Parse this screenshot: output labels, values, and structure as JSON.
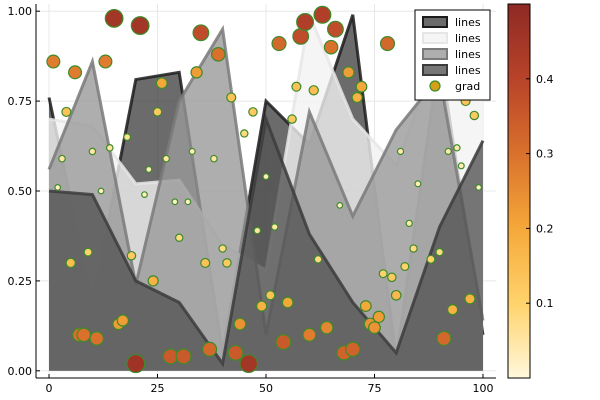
{
  "chart_data": {
    "type": "area",
    "title": "",
    "xlabel": "",
    "ylabel": "",
    "xlim": [
      -3,
      103
    ],
    "ylim": [
      -0.02,
      1.02
    ],
    "xticks": [
      0,
      25,
      50,
      75,
      100
    ],
    "xtick_labels": [
      "0",
      "25",
      "50",
      "75",
      "100"
    ],
    "yticks": [
      0,
      0.25,
      0.5,
      0.75,
      1.0
    ],
    "ytick_labels": [
      "0.00",
      "0.25",
      "0.50",
      "0.75",
      "1.00"
    ],
    "grid": true,
    "legend_position": "top-right",
    "series": [
      {
        "name": "lines",
        "kind": "filled-line",
        "fill_color": "#3a3a3a",
        "fill_opacity": 0.75,
        "line_color": "#1c1c1c",
        "x": [
          0,
          10,
          20,
          30,
          40,
          50,
          60,
          70,
          80,
          90,
          100
        ],
        "y": [
          0.76,
          0.19,
          0.81,
          0.83,
          0.05,
          0.75,
          0.63,
          0.99,
          0.03,
          0.88,
          0.1
        ]
      },
      {
        "name": "lines",
        "kind": "filled-line",
        "fill_color": "#f2f2f2",
        "fill_opacity": 0.8,
        "line_color": "#e6e6e6",
        "x": [
          0,
          10,
          20,
          30,
          40,
          50,
          60,
          70,
          80,
          90,
          100
        ],
        "y": [
          0.7,
          0.68,
          0.52,
          0.53,
          0.35,
          0.28,
          0.99,
          0.7,
          0.57,
          0.9,
          0.76
        ]
      },
      {
        "name": "lines",
        "kind": "filled-line",
        "fill_color": "#9a9a9a",
        "fill_opacity": 0.8,
        "line_color": "#7a7a7a",
        "x": [
          0,
          10,
          20,
          30,
          40,
          50,
          60,
          70,
          80,
          90,
          100
        ],
        "y": [
          0.56,
          0.86,
          0.24,
          0.75,
          0.95,
          0.1,
          0.72,
          0.43,
          0.67,
          0.82,
          0.14
        ]
      },
      {
        "name": "lines",
        "kind": "filled-line",
        "fill_color": "#555555",
        "fill_opacity": 0.8,
        "line_color": "#3c3c3c",
        "x": [
          0,
          10,
          20,
          30,
          40,
          50,
          60,
          70,
          80,
          90,
          100
        ],
        "y": [
          0.5,
          0.49,
          0.25,
          0.19,
          0.02,
          0.7,
          0.38,
          0.19,
          0.05,
          0.4,
          0.64
        ]
      },
      {
        "name": "grad",
        "kind": "scatter",
        "marker_color": "#d4a017",
        "marker_stroke": "#3f8a2a",
        "points": [
          [
            1,
            0.86,
            0.28
          ],
          [
            3,
            0.59,
            0.05
          ],
          [
            4,
            0.72,
            0.14
          ],
          [
            2,
            0.51,
            0.02
          ],
          [
            5,
            0.3,
            0.15
          ],
          [
            6,
            0.83,
            0.28
          ],
          [
            7,
            0.1,
            0.3
          ],
          [
            8,
            0.1,
            0.3
          ],
          [
            9,
            0.33,
            0.1
          ],
          [
            10,
            0.61,
            0.05
          ],
          [
            11,
            0.09,
            0.3
          ],
          [
            12,
            0.5,
            0.02
          ],
          [
            13,
            0.86,
            0.28
          ],
          [
            14,
            0.62,
            0.05
          ],
          [
            15,
            0.98,
            0.45
          ],
          [
            16,
            0.13,
            0.22
          ],
          [
            17,
            0.14,
            0.22
          ],
          [
            18,
            0.65,
            0.06
          ],
          [
            19,
            0.32,
            0.12
          ],
          [
            20,
            0.02,
            0.46
          ],
          [
            21,
            0.96,
            0.45
          ],
          [
            22,
            0.49,
            0.02
          ],
          [
            23,
            0.56,
            0.03
          ],
          [
            24,
            0.25,
            0.18
          ],
          [
            25,
            0.72,
            0.12
          ],
          [
            26,
            0.8,
            0.2
          ],
          [
            27,
            0.59,
            0.05
          ],
          [
            28,
            0.04,
            0.35
          ],
          [
            29,
            0.47,
            0.02
          ],
          [
            30,
            0.37,
            0.08
          ],
          [
            31,
            0.04,
            0.35
          ],
          [
            32,
            0.47,
            0.02
          ],
          [
            33,
            0.61,
            0.03
          ],
          [
            34,
            0.83,
            0.22
          ],
          [
            35,
            0.94,
            0.38
          ],
          [
            36,
            0.3,
            0.14
          ],
          [
            37,
            0.06,
            0.32
          ],
          [
            38,
            0.59,
            0.05
          ],
          [
            39,
            0.88,
            0.3
          ],
          [
            40,
            0.34,
            0.08
          ],
          [
            41,
            0.3,
            0.12
          ],
          [
            42,
            0.76,
            0.14
          ],
          [
            43,
            0.05,
            0.35
          ],
          [
            44,
            0.13,
            0.24
          ],
          [
            45,
            0.66,
            0.08
          ],
          [
            46,
            0.02,
            0.45
          ],
          [
            47,
            0.72,
            0.12
          ],
          [
            48,
            0.39,
            0.05
          ],
          [
            49,
            0.18,
            0.18
          ],
          [
            50,
            0.54,
            0.03
          ],
          [
            51,
            0.21,
            0.14
          ],
          [
            52,
            0.4,
            0.05
          ],
          [
            53,
            0.91,
            0.32
          ],
          [
            54,
            0.08,
            0.35
          ],
          [
            55,
            0.19,
            0.2
          ],
          [
            56,
            0.7,
            0.12
          ],
          [
            57,
            0.79,
            0.14
          ],
          [
            58,
            0.93,
            0.38
          ],
          [
            59,
            0.97,
            0.42
          ],
          [
            60,
            0.1,
            0.28
          ],
          [
            61,
            0.78,
            0.15
          ],
          [
            62,
            0.31,
            0.08
          ],
          [
            63,
            0.99,
            0.42
          ],
          [
            64,
            0.12,
            0.26
          ],
          [
            65,
            0.9,
            0.3
          ],
          [
            66,
            0.95,
            0.38
          ],
          [
            67,
            0.46,
            0.02
          ],
          [
            68,
            0.05,
            0.33
          ],
          [
            69,
            0.83,
            0.22
          ],
          [
            70,
            0.06,
            0.33
          ],
          [
            71,
            0.76,
            0.18
          ],
          [
            72,
            0.79,
            0.2
          ],
          [
            73,
            0.18,
            0.2
          ],
          [
            74,
            0.13,
            0.24
          ],
          [
            75,
            0.12,
            0.24
          ],
          [
            76,
            0.15,
            0.22
          ],
          [
            77,
            0.27,
            0.1
          ],
          [
            78,
            0.91,
            0.32
          ],
          [
            79,
            0.26,
            0.12
          ],
          [
            80,
            0.21,
            0.16
          ],
          [
            81,
            0.61,
            0.04
          ],
          [
            82,
            0.29,
            0.1
          ],
          [
            83,
            0.41,
            0.04
          ],
          [
            84,
            0.34,
            0.08
          ],
          [
            85,
            0.52,
            0.03
          ],
          [
            88,
            0.31,
            0.1
          ],
          [
            90,
            0.33,
            0.08
          ],
          [
            91,
            0.09,
            0.32
          ],
          [
            92,
            0.61,
            0.04
          ],
          [
            93,
            0.17,
            0.18
          ],
          [
            94,
            0.62,
            0.04
          ],
          [
            95,
            0.57,
            0.03
          ],
          [
            96,
            0.75,
            0.14
          ],
          [
            97,
            0.2,
            0.18
          ],
          [
            98,
            0.71,
            0.12
          ],
          [
            99,
            0.51,
            0.02
          ]
        ]
      }
    ],
    "colorbar": {
      "min": 0.0,
      "max": 0.5,
      "ticks": [
        0.1,
        0.2,
        0.3,
        0.4
      ],
      "tick_labels": [
        "0.1",
        "0.2",
        "0.3",
        "0.4"
      ],
      "stops": [
        "#fff8dc",
        "#ffd36b",
        "#f5a83a",
        "#d9712c",
        "#b8432a",
        "#8e2a24"
      ]
    }
  }
}
